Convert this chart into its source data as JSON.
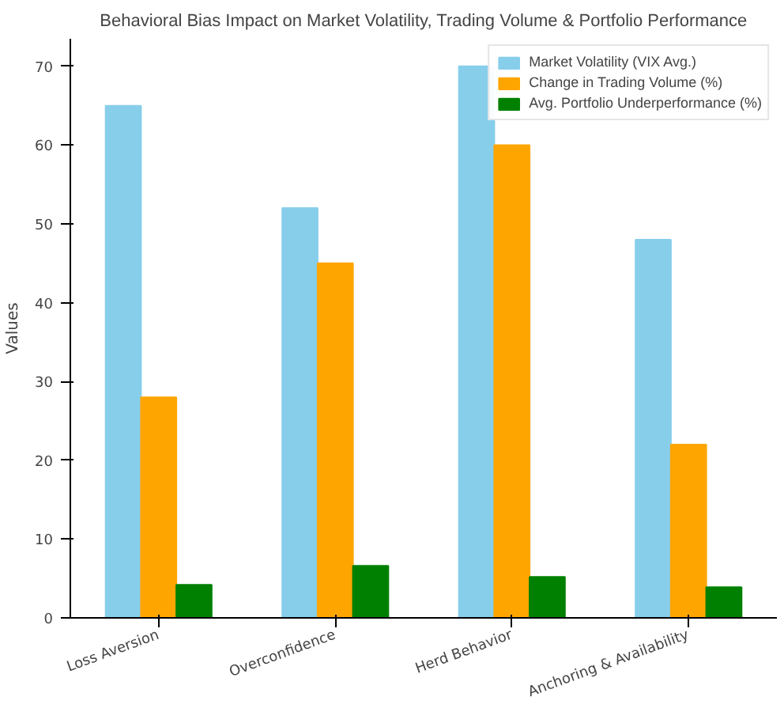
{
  "chart_data": {
    "type": "bar",
    "title": "Behavioral Bias Impact on Market Volatility, Trading Volume & Portfolio Performance",
    "ylabel": "Values",
    "categories": [
      "Loss Aversion",
      "Overconfidence",
      "Herd Behavior",
      "Anchoring & Availability"
    ],
    "series": [
      {
        "name": "Market Volatility (VIX Avg.)",
        "color": "#87ceeb",
        "values": [
          65,
          52,
          70,
          48
        ]
      },
      {
        "name": "Change in Trading Volume (%)",
        "color": "#ffa500",
        "values": [
          28,
          45,
          60,
          22
        ]
      },
      {
        "name": "Avg. Portfolio Underperformance (%)",
        "color": "#008000",
        "values": [
          4.2,
          6.6,
          5.2,
          3.9
        ]
      }
    ],
    "ylim": [
      0,
      73.5
    ],
    "yticks": [
      0,
      10,
      20,
      30,
      40,
      50,
      60,
      70
    ],
    "grid": false,
    "legend": "top right"
  }
}
